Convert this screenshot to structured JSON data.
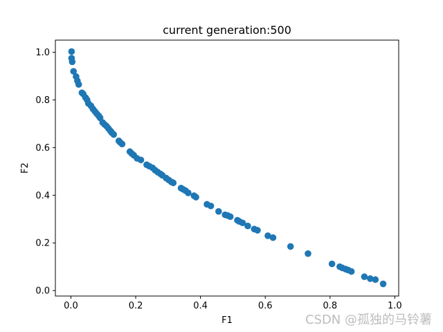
{
  "chart_data": {
    "type": "scatter",
    "title": "current generation:500",
    "xlabel": "F1",
    "ylabel": "F2",
    "xlim": [
      -0.048,
      1.012
    ],
    "ylim": [
      -0.023,
      1.051
    ],
    "xticks": [
      0.0,
      0.2,
      0.4,
      0.6,
      0.8,
      1.0
    ],
    "yticks": [
      0.0,
      0.2,
      0.4,
      0.6,
      0.8,
      1.0
    ],
    "xtick_labels": [
      "0.0",
      "0.2",
      "0.4",
      "0.6",
      "0.8",
      "1.0"
    ],
    "ytick_labels": [
      "0.0",
      "0.2",
      "0.4",
      "0.6",
      "0.8",
      "1.0"
    ],
    "grid": false,
    "marker_color": "#1f77b4",
    "series": [
      {
        "points": [
          [
            0.002,
            1.003
          ],
          [
            0.002,
            0.975
          ],
          [
            0.004,
            0.96
          ],
          [
            0.008,
            0.92
          ],
          [
            0.016,
            0.898
          ],
          [
            0.02,
            0.88
          ],
          [
            0.024,
            0.865
          ],
          [
            0.034,
            0.83
          ],
          [
            0.038,
            0.825
          ],
          [
            0.045,
            0.81
          ],
          [
            0.05,
            0.8
          ],
          [
            0.054,
            0.785
          ],
          [
            0.062,
            0.775
          ],
          [
            0.068,
            0.762
          ],
          [
            0.074,
            0.752
          ],
          [
            0.08,
            0.742
          ],
          [
            0.086,
            0.733
          ],
          [
            0.09,
            0.725
          ],
          [
            0.098,
            0.705
          ],
          [
            0.104,
            0.697
          ],
          [
            0.11,
            0.69
          ],
          [
            0.116,
            0.68
          ],
          [
            0.122,
            0.67
          ],
          [
            0.126,
            0.663
          ],
          [
            0.132,
            0.655
          ],
          [
            0.148,
            0.628
          ],
          [
            0.152,
            0.622
          ],
          [
            0.158,
            0.615
          ],
          [
            0.182,
            0.583
          ],
          [
            0.188,
            0.575
          ],
          [
            0.194,
            0.568
          ],
          [
            0.204,
            0.555
          ],
          [
            0.216,
            0.548
          ],
          [
            0.234,
            0.528
          ],
          [
            0.242,
            0.522
          ],
          [
            0.252,
            0.515
          ],
          [
            0.26,
            0.505
          ],
          [
            0.268,
            0.497
          ],
          [
            0.276,
            0.49
          ],
          [
            0.282,
            0.484
          ],
          [
            0.294,
            0.472
          ],
          [
            0.302,
            0.464
          ],
          [
            0.31,
            0.456
          ],
          [
            0.316,
            0.452
          ],
          [
            0.34,
            0.43
          ],
          [
            0.346,
            0.425
          ],
          [
            0.354,
            0.419
          ],
          [
            0.362,
            0.41
          ],
          [
            0.38,
            0.398
          ],
          [
            0.386,
            0.392
          ],
          [
            0.42,
            0.362
          ],
          [
            0.432,
            0.355
          ],
          [
            0.456,
            0.332
          ],
          [
            0.476,
            0.318
          ],
          [
            0.484,
            0.315
          ],
          [
            0.492,
            0.31
          ],
          [
            0.514,
            0.295
          ],
          [
            0.52,
            0.29
          ],
          [
            0.53,
            0.284
          ],
          [
            0.546,
            0.271
          ],
          [
            0.566,
            0.258
          ],
          [
            0.576,
            0.253
          ],
          [
            0.608,
            0.23
          ],
          [
            0.624,
            0.222
          ],
          [
            0.678,
            0.185
          ],
          [
            0.732,
            0.155
          ],
          [
            0.806,
            0.112
          ],
          [
            0.83,
            0.1
          ],
          [
            0.838,
            0.095
          ],
          [
            0.848,
            0.09
          ],
          [
            0.856,
            0.086
          ],
          [
            0.866,
            0.08
          ],
          [
            0.906,
            0.058
          ],
          [
            0.924,
            0.05
          ],
          [
            0.94,
            0.046
          ],
          [
            0.964,
            0.028
          ]
        ]
      }
    ]
  },
  "watermark": "CSDN @孤独的马铃薯"
}
